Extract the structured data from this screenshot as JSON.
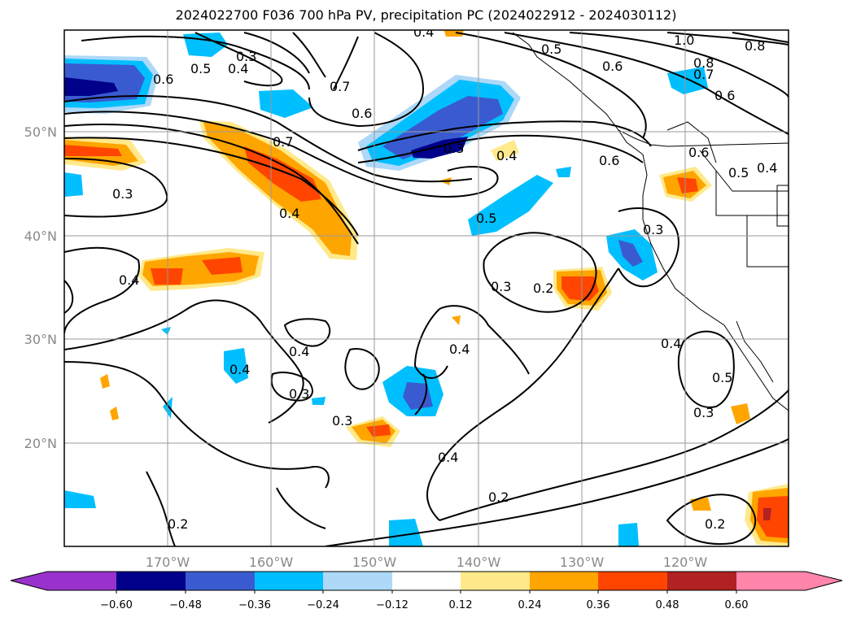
{
  "title": "2024022700 F036 700 hPa PV, precipitation PC (2024022912 - 2024030112)",
  "map": {
    "lat_ticks": [
      "50°N",
      "40°N",
      "30°N",
      "20°N"
    ],
    "lon_ticks": [
      "170°W",
      "160°W",
      "150°W",
      "140°W",
      "130°W",
      "120°W"
    ],
    "contour_labels": [
      "0.4",
      "0.3",
      "0.4",
      "0.5",
      "0.6",
      "0.7",
      "0.6",
      "0.5",
      "1.0",
      "0.8",
      "0.8",
      "0.7",
      "0.6",
      "0.7",
      "0.3",
      "0.4",
      "0.6",
      "0.6",
      "0.5",
      "0.4",
      "0.3",
      "0.4",
      "0.5",
      "0.3",
      "0.2",
      "0.3",
      "0.4",
      "0.4",
      "0.4",
      "0.3",
      "0.3",
      "0.4",
      "0.4",
      "0.5",
      "0.3",
      "0.2",
      "0.2",
      "0.2",
      "0.4",
      "0.6"
    ],
    "coast_color": "#000000",
    "contour_color": "#000000",
    "grid_color": "#999999"
  },
  "colorbar": {
    "colors": [
      "#9932cc",
      "#00008b",
      "#3a5bd0",
      "#00bfff",
      "#add8f8",
      "#ffffff",
      "#ffe98a",
      "#ffa500",
      "#ff4500",
      "#b22222",
      "#ff85aa"
    ],
    "tick_labels": [
      "−0.60",
      "−0.48",
      "−0.36",
      "−0.24",
      "−0.12",
      "0.12",
      "0.24",
      "0.36",
      "0.48",
      "0.60"
    ]
  }
}
